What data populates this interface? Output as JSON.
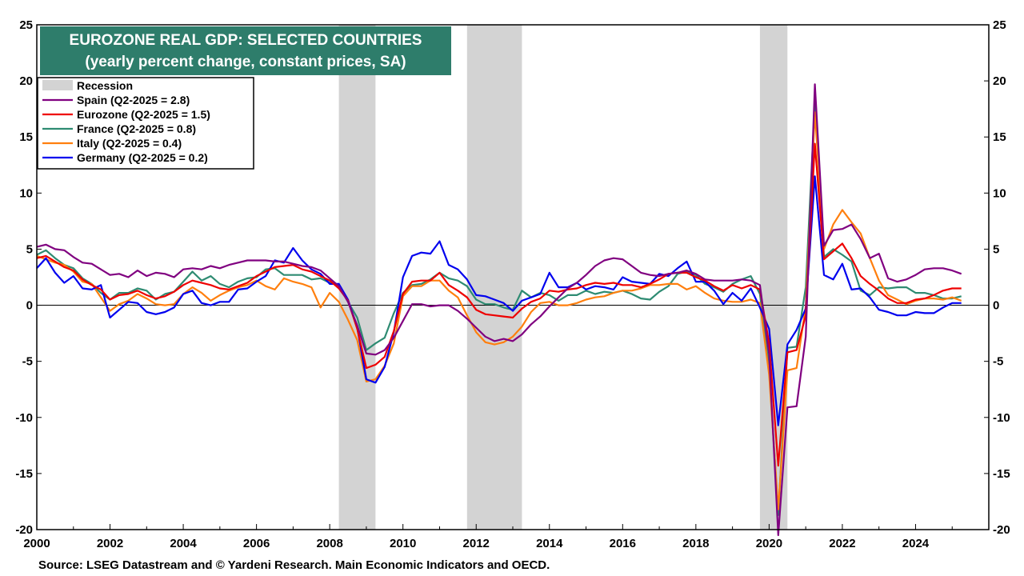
{
  "chart_data": {
    "type": "line",
    "title": "EUROZONE REAL GDP: SELECTED COUNTRIES",
    "subtitle": "(yearly percent change, constant prices, SA)",
    "source": "Source: LSEG Datastream and © Yardeni Research. Main Economic Indicators and OECD.",
    "xlim": [
      2000,
      2026
    ],
    "ylim": [
      -20,
      25
    ],
    "x_ticks": [
      2000,
      2002,
      2004,
      2006,
      2008,
      2010,
      2012,
      2014,
      2016,
      2018,
      2020,
      2022,
      2024
    ],
    "y_ticks": [
      -20,
      -15,
      -10,
      -5,
      0,
      5,
      10,
      15,
      20,
      25
    ],
    "grid": false,
    "legend_position": "top-left",
    "legend_recession_label": "Recession",
    "recession_color": "#d3d3d3",
    "recessions": [
      {
        "start": 2008.25,
        "end": 2009.25
      },
      {
        "start": 2011.75,
        "end": 2013.25
      },
      {
        "start": 2019.75,
        "end": 2020.5
      }
    ],
    "series": [
      {
        "name": "Spain (Q2-2025 = 2.8)",
        "color": "#800080",
        "x": [
          2000.0,
          2000.25,
          2000.5,
          2000.75,
          2001.0,
          2001.25,
          2001.5,
          2001.75,
          2002.0,
          2002.25,
          2002.5,
          2002.75,
          2003.0,
          2003.25,
          2003.5,
          2003.75,
          2004.0,
          2004.25,
          2004.5,
          2004.75,
          2005.0,
          2005.25,
          2005.5,
          2005.75,
          2006.0,
          2006.25,
          2006.5,
          2006.75,
          2007.0,
          2007.25,
          2007.5,
          2007.75,
          2008.0,
          2008.25,
          2008.5,
          2008.75,
          2009.0,
          2009.25,
          2009.5,
          2009.75,
          2010.0,
          2010.25,
          2010.5,
          2010.75,
          2011.0,
          2011.25,
          2011.5,
          2011.75,
          2012.0,
          2012.25,
          2012.5,
          2012.75,
          2013.0,
          2013.25,
          2013.5,
          2013.75,
          2014.0,
          2014.25,
          2014.5,
          2014.75,
          2015.0,
          2015.25,
          2015.5,
          2015.75,
          2016.0,
          2016.25,
          2016.5,
          2016.75,
          2017.0,
          2017.25,
          2017.5,
          2017.75,
          2018.0,
          2018.25,
          2018.5,
          2018.75,
          2019.0,
          2019.25,
          2019.5,
          2019.75,
          2020.0,
          2020.25,
          2020.5,
          2020.75,
          2021.0,
          2021.25,
          2021.5,
          2021.75,
          2022.0,
          2022.25,
          2022.5,
          2022.75,
          2023.0,
          2023.25,
          2023.5,
          2023.75,
          2024.0,
          2024.25,
          2024.5,
          2024.75,
          2025.0,
          2025.25
        ],
        "y": [
          5.2,
          5.4,
          5.0,
          4.9,
          4.3,
          3.8,
          3.7,
          3.2,
          2.7,
          2.8,
          2.5,
          3.1,
          2.6,
          2.9,
          2.8,
          2.5,
          3.2,
          3.3,
          3.2,
          3.5,
          3.3,
          3.6,
          3.8,
          4.0,
          4.0,
          4.0,
          3.9,
          3.9,
          3.7,
          3.5,
          3.4,
          3.1,
          2.4,
          1.7,
          0.3,
          -1.8,
          -4.3,
          -4.4,
          -4.0,
          -2.9,
          -1.4,
          0.1,
          0.1,
          -0.1,
          0.0,
          0.0,
          -0.5,
          -1.2,
          -2.0,
          -2.8,
          -3.2,
          -3.0,
          -3.2,
          -2.6,
          -1.7,
          -1.0,
          -0.1,
          0.7,
          1.5,
          2.0,
          2.7,
          3.5,
          4.0,
          4.2,
          4.1,
          3.5,
          2.9,
          2.7,
          2.6,
          2.8,
          2.9,
          3.1,
          2.8,
          2.3,
          2.2,
          2.2,
          2.2,
          2.3,
          2.2,
          1.8,
          -4.4,
          -20.5,
          -9.1,
          -9.0,
          -2.8,
          19.7,
          5.3,
          6.7,
          6.8,
          7.2,
          5.9,
          4.2,
          4.6,
          2.4,
          2.1,
          2.3,
          2.7,
          3.2,
          3.3,
          3.3,
          3.1,
          2.8
        ]
      },
      {
        "name": "Eurozone (Q2-2025 = 1.5)",
        "color": "#ee0000",
        "x": [
          2000.0,
          2000.25,
          2000.5,
          2000.75,
          2001.0,
          2001.25,
          2001.5,
          2001.75,
          2002.0,
          2002.25,
          2002.5,
          2002.75,
          2003.0,
          2003.25,
          2003.5,
          2003.75,
          2004.0,
          2004.25,
          2004.5,
          2004.75,
          2005.0,
          2005.25,
          2005.5,
          2005.75,
          2006.0,
          2006.25,
          2006.5,
          2006.75,
          2007.0,
          2007.25,
          2007.5,
          2007.75,
          2008.0,
          2008.25,
          2008.5,
          2008.75,
          2009.0,
          2009.25,
          2009.5,
          2009.75,
          2010.0,
          2010.25,
          2010.5,
          2010.75,
          2011.0,
          2011.25,
          2011.5,
          2011.75,
          2012.0,
          2012.25,
          2012.5,
          2012.75,
          2013.0,
          2013.25,
          2013.5,
          2013.75,
          2014.0,
          2014.25,
          2014.5,
          2014.75,
          2015.0,
          2015.25,
          2015.5,
          2015.75,
          2016.0,
          2016.25,
          2016.5,
          2016.75,
          2017.0,
          2017.25,
          2017.5,
          2017.75,
          2018.0,
          2018.25,
          2018.5,
          2018.75,
          2019.0,
          2019.25,
          2019.5,
          2019.75,
          2020.0,
          2020.25,
          2020.5,
          2020.75,
          2021.0,
          2021.25,
          2021.5,
          2021.75,
          2022.0,
          2022.25,
          2022.5,
          2022.75,
          2023.0,
          2023.25,
          2023.5,
          2023.75,
          2024.0,
          2024.25,
          2024.5,
          2024.75,
          2025.0,
          2025.25
        ],
        "y": [
          4.2,
          4.4,
          3.9,
          3.4,
          3.1,
          2.3,
          1.8,
          1.4,
          0.5,
          0.9,
          1.0,
          1.3,
          0.9,
          0.6,
          0.8,
          1.2,
          1.8,
          2.2,
          2.0,
          1.8,
          1.5,
          1.4,
          1.7,
          2.0,
          2.6,
          3.0,
          3.4,
          3.5,
          3.6,
          3.2,
          3.0,
          2.6,
          2.2,
          1.5,
          0.4,
          -2.1,
          -5.6,
          -5.3,
          -4.6,
          -2.3,
          1.0,
          2.1,
          2.2,
          2.2,
          2.9,
          1.8,
          1.3,
          0.7,
          -0.4,
          -0.8,
          -0.9,
          -1.0,
          -1.1,
          -0.3,
          0.3,
          0.6,
          1.3,
          1.2,
          1.4,
          1.5,
          1.8,
          2.0,
          1.9,
          2.0,
          1.8,
          1.8,
          1.6,
          1.9,
          2.3,
          2.8,
          2.9,
          2.9,
          2.5,
          2.2,
          1.7,
          1.3,
          1.8,
          1.5,
          1.8,
          1.4,
          -3.4,
          -14.3,
          -4.2,
          -4.0,
          -0.9,
          14.4,
          4.1,
          4.8,
          5.5,
          4.2,
          2.6,
          1.9,
          1.3,
          0.6,
          0.2,
          0.2,
          0.5,
          0.6,
          0.9,
          1.3,
          1.5,
          1.5
        ]
      },
      {
        "name": "France (Q2-2025 = 0.8)",
        "color": "#2e8b72",
        "x": [
          2000.0,
          2000.25,
          2000.5,
          2000.75,
          2001.0,
          2001.25,
          2001.5,
          2001.75,
          2002.0,
          2002.25,
          2002.5,
          2002.75,
          2003.0,
          2003.25,
          2003.5,
          2003.75,
          2004.0,
          2004.25,
          2004.5,
          2004.75,
          2005.0,
          2005.25,
          2005.5,
          2005.75,
          2006.0,
          2006.25,
          2006.5,
          2006.75,
          2007.0,
          2007.25,
          2007.5,
          2007.75,
          2008.0,
          2008.25,
          2008.5,
          2008.75,
          2009.0,
          2009.25,
          2009.5,
          2009.75,
          2010.0,
          2010.25,
          2010.5,
          2010.75,
          2011.0,
          2011.25,
          2011.5,
          2011.75,
          2012.0,
          2012.25,
          2012.5,
          2012.75,
          2013.0,
          2013.25,
          2013.5,
          2013.75,
          2014.0,
          2014.25,
          2014.5,
          2014.75,
          2015.0,
          2015.25,
          2015.5,
          2015.75,
          2016.0,
          2016.25,
          2016.5,
          2016.75,
          2017.0,
          2017.25,
          2017.5,
          2017.75,
          2018.0,
          2018.25,
          2018.5,
          2018.75,
          2019.0,
          2019.25,
          2019.5,
          2019.75,
          2020.0,
          2020.25,
          2020.5,
          2020.75,
          2021.0,
          2021.25,
          2021.5,
          2021.75,
          2022.0,
          2022.25,
          2022.5,
          2022.75,
          2023.0,
          2023.25,
          2023.5,
          2023.75,
          2024.0,
          2024.25,
          2024.5,
          2024.75,
          2025.0,
          2025.25
        ],
        "y": [
          4.5,
          4.9,
          4.2,
          3.6,
          3.3,
          2.4,
          1.9,
          1.1,
          0.5,
          1.1,
          1.1,
          1.5,
          1.3,
          0.5,
          1.0,
          1.2,
          2.1,
          3.0,
          2.2,
          2.6,
          1.9,
          1.6,
          2.1,
          2.4,
          2.5,
          3.2,
          3.3,
          2.7,
          2.7,
          2.7,
          2.3,
          2.4,
          2.0,
          1.8,
          0.3,
          -1.1,
          -4.0,
          -3.4,
          -2.9,
          -0.7,
          1.1,
          1.8,
          1.9,
          2.3,
          2.9,
          2.4,
          2.2,
          1.7,
          0.5,
          0.1,
          0.1,
          -0.2,
          -0.4,
          1.3,
          0.7,
          1.1,
          0.9,
          0.4,
          0.9,
          0.9,
          1.3,
          1.0,
          1.2,
          1.1,
          1.3,
          1.0,
          0.6,
          0.5,
          1.2,
          1.7,
          2.8,
          3.0,
          2.7,
          1.9,
          1.6,
          1.2,
          1.9,
          2.3,
          2.6,
          1.0,
          -5.6,
          -18.7,
          -3.8,
          -3.7,
          1.6,
          18.1,
          4.3,
          5.0,
          4.5,
          3.9,
          1.3,
          0.9,
          1.6,
          1.5,
          1.6,
          1.6,
          1.1,
          1.1,
          0.9,
          0.6,
          0.6,
          0.8
        ]
      },
      {
        "name": "Italy (Q2-2025 = 0.4)",
        "color": "#ff7f0e",
        "x": [
          2000.0,
          2000.25,
          2000.5,
          2000.75,
          2001.0,
          2001.25,
          2001.5,
          2001.75,
          2002.0,
          2002.25,
          2002.5,
          2002.75,
          2003.0,
          2003.25,
          2003.5,
          2003.75,
          2004.0,
          2004.25,
          2004.5,
          2004.75,
          2005.0,
          2005.25,
          2005.5,
          2005.75,
          2006.0,
          2006.25,
          2006.5,
          2006.75,
          2007.0,
          2007.25,
          2007.5,
          2007.75,
          2008.0,
          2008.25,
          2008.5,
          2008.75,
          2009.0,
          2009.25,
          2009.5,
          2009.75,
          2010.0,
          2010.25,
          2010.5,
          2010.75,
          2011.0,
          2011.25,
          2011.5,
          2011.75,
          2012.0,
          2012.25,
          2012.5,
          2012.75,
          2013.0,
          2013.25,
          2013.5,
          2013.75,
          2014.0,
          2014.25,
          2014.5,
          2014.75,
          2015.0,
          2015.25,
          2015.5,
          2015.75,
          2016.0,
          2016.25,
          2016.5,
          2016.75,
          2017.0,
          2017.25,
          2017.5,
          2017.75,
          2018.0,
          2018.25,
          2018.5,
          2018.75,
          2019.0,
          2019.25,
          2019.5,
          2019.75,
          2020.0,
          2020.25,
          2020.5,
          2020.75,
          2021.0,
          2021.25,
          2021.5,
          2021.75,
          2022.0,
          2022.25,
          2022.5,
          2022.75,
          2023.0,
          2023.25,
          2023.5,
          2023.75,
          2024.0,
          2024.25,
          2024.5,
          2024.75,
          2025.0,
          2025.25
        ],
        "y": [
          4.4,
          4.1,
          3.8,
          3.6,
          3.0,
          2.1,
          1.9,
          0.7,
          -0.5,
          0.1,
          0.4,
          1.0,
          0.6,
          0.1,
          0.0,
          0.1,
          1.0,
          1.6,
          1.1,
          0.4,
          0.9,
          1.3,
          1.6,
          1.8,
          2.2,
          1.7,
          1.4,
          2.4,
          2.1,
          1.9,
          1.6,
          -0.2,
          1.1,
          0.3,
          -1.3,
          -3.1,
          -6.8,
          -6.6,
          -5.4,
          -3.4,
          0.8,
          1.7,
          1.7,
          2.2,
          2.2,
          1.3,
          0.7,
          -0.9,
          -2.4,
          -3.3,
          -3.5,
          -3.3,
          -2.8,
          -1.9,
          -0.6,
          0.2,
          0.3,
          0.0,
          0.0,
          0.2,
          0.5,
          0.7,
          0.8,
          1.1,
          1.3,
          1.3,
          1.5,
          1.8,
          1.8,
          1.9,
          1.9,
          1.4,
          1.7,
          1.1,
          0.6,
          0.4,
          0.3,
          0.3,
          0.5,
          0.2,
          -6.2,
          -18.2,
          -5.8,
          -5.6,
          -0.1,
          17.2,
          5.0,
          7.2,
          8.5,
          7.4,
          6.4,
          4.2,
          2.2,
          0.9,
          0.5,
          0.1,
          0.4,
          0.6,
          0.6,
          0.5,
          0.7,
          0.4
        ]
      },
      {
        "name": "Germany (Q2-2025 = 0.2)",
        "color": "#0000ee",
        "x": [
          2000.0,
          2000.25,
          2000.5,
          2000.75,
          2001.0,
          2001.25,
          2001.5,
          2001.75,
          2002.0,
          2002.25,
          2002.5,
          2002.75,
          2003.0,
          2003.25,
          2003.5,
          2003.75,
          2004.0,
          2004.25,
          2004.5,
          2004.75,
          2005.0,
          2005.25,
          2005.5,
          2005.75,
          2006.0,
          2006.25,
          2006.5,
          2006.75,
          2007.0,
          2007.25,
          2007.5,
          2007.75,
          2008.0,
          2008.25,
          2008.5,
          2008.75,
          2009.0,
          2009.25,
          2009.5,
          2009.75,
          2010.0,
          2010.25,
          2010.5,
          2010.75,
          2011.0,
          2011.25,
          2011.5,
          2011.75,
          2012.0,
          2012.25,
          2012.5,
          2012.75,
          2013.0,
          2013.25,
          2013.5,
          2013.75,
          2014.0,
          2014.25,
          2014.5,
          2014.75,
          2015.0,
          2015.25,
          2015.5,
          2015.75,
          2016.0,
          2016.25,
          2016.5,
          2016.75,
          2017.0,
          2017.25,
          2017.5,
          2017.75,
          2018.0,
          2018.25,
          2018.5,
          2018.75,
          2019.0,
          2019.25,
          2019.5,
          2019.75,
          2020.0,
          2020.25,
          2020.5,
          2020.75,
          2021.0,
          2021.25,
          2021.5,
          2021.75,
          2022.0,
          2022.25,
          2022.5,
          2022.75,
          2023.0,
          2023.25,
          2023.5,
          2023.75,
          2024.0,
          2024.25,
          2024.5,
          2024.75,
          2025.0,
          2025.25
        ],
        "y": [
          3.3,
          4.2,
          2.9,
          2.0,
          2.6,
          1.5,
          1.4,
          1.8,
          -1.1,
          -0.4,
          0.3,
          0.2,
          -0.6,
          -0.8,
          -0.6,
          -0.2,
          1.0,
          1.3,
          0.2,
          0.0,
          0.3,
          0.3,
          1.4,
          1.5,
          2.1,
          2.6,
          4.0,
          3.8,
          5.1,
          4.0,
          3.2,
          2.8,
          1.9,
          1.9,
          0.5,
          -2.0,
          -6.6,
          -6.9,
          -5.5,
          -2.4,
          2.5,
          4.4,
          4.7,
          4.6,
          5.7,
          3.6,
          3.2,
          2.3,
          0.9,
          0.8,
          0.5,
          0.2,
          -0.5,
          0.4,
          0.7,
          1.0,
          2.9,
          1.6,
          1.6,
          2.0,
          1.4,
          1.7,
          1.6,
          1.4,
          2.5,
          2.1,
          2.0,
          1.9,
          2.8,
          2.6,
          3.3,
          3.9,
          2.1,
          2.1,
          1.3,
          0.1,
          1.1,
          0.4,
          1.5,
          -0.2,
          -2.1,
          -10.7,
          -3.5,
          -2.2,
          -0.3,
          11.5,
          2.7,
          2.3,
          3.7,
          1.4,
          1.5,
          0.7,
          -0.4,
          -0.6,
          -0.9,
          -0.9,
          -0.6,
          -0.7,
          -0.7,
          -0.2,
          0.2,
          0.2
        ]
      }
    ]
  }
}
